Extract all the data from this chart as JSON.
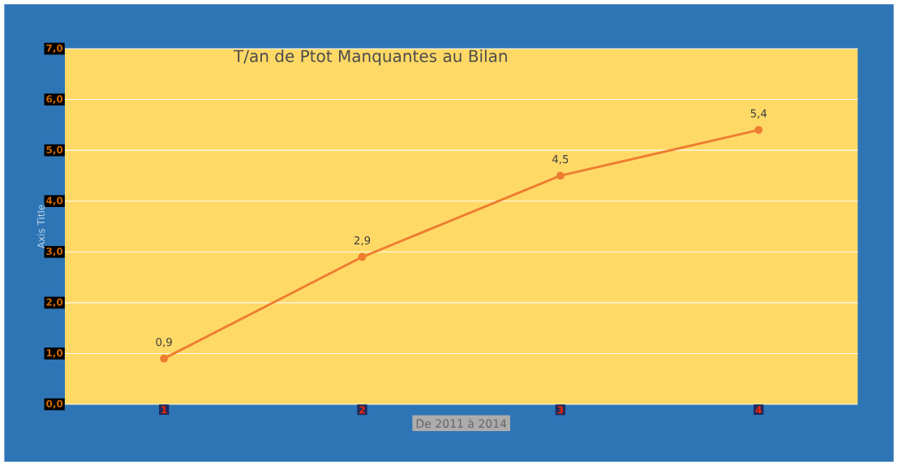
{
  "chart_data": {
    "type": "line",
    "title": "T/an  de Ptot Manquantes au Bilan",
    "xlabel": "De 2011 à 2014",
    "ylabel": "Axis Title",
    "categories": [
      "1",
      "2",
      "3",
      "4"
    ],
    "series": [
      {
        "color": "#ed7d31",
        "values": [
          0.9,
          2.9,
          4.5,
          5.4
        ],
        "value_labels": [
          "0,9",
          "2,9",
          "4,5",
          "5,4"
        ]
      }
    ],
    "ylim": [
      0,
      7
    ],
    "yticks": [
      {
        "value": 0,
        "label": "0,0"
      },
      {
        "value": 1,
        "label": "1,0"
      },
      {
        "value": 2,
        "label": "2,0"
      },
      {
        "value": 3,
        "label": "3,0"
      },
      {
        "value": 4,
        "label": "4,0"
      },
      {
        "value": 5,
        "label": "5,0"
      },
      {
        "value": 6,
        "label": "6,0"
      },
      {
        "value": 7,
        "label": "7,0"
      }
    ],
    "grid": "y",
    "marker": "circle",
    "line_style": "solid"
  }
}
